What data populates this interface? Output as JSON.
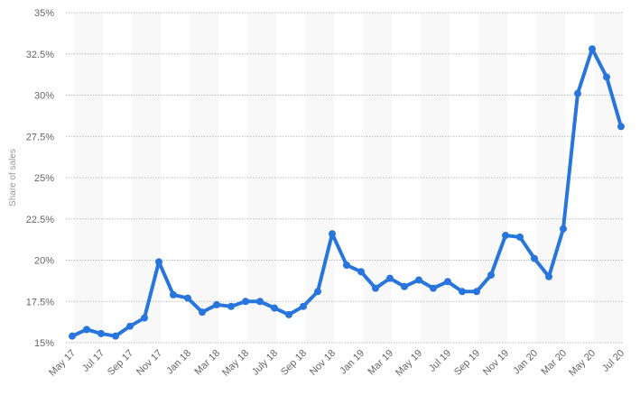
{
  "chart_data": {
    "type": "line",
    "title": "",
    "xlabel": "",
    "ylabel": "Share of sales",
    "ylim": [
      15,
      35
    ],
    "yticks": [
      15,
      17.5,
      20,
      22.5,
      25,
      27.5,
      30,
      32.5,
      35
    ],
    "ytick_labels": [
      "15%",
      "17.5%",
      "20%",
      "22.5%",
      "25%",
      "27.5%",
      "30%",
      "32.5%",
      "35%"
    ],
    "grid": true,
    "line_color": "#2876dd",
    "categories": [
      "May 17",
      "Jun 17",
      "Jul 17",
      "Aug 17",
      "Sep 17",
      "Oct 17",
      "Nov 17",
      "Dec 17",
      "Jan 18",
      "Feb 18",
      "Mar 18",
      "Apr 18",
      "May 18",
      "Jun 18",
      "July 18",
      "Aug 18",
      "Sep 18",
      "Oct 18",
      "Nov 18",
      "Dec 18",
      "Jan 19",
      "Feb 19",
      "Mar 19",
      "Apr 19",
      "May 19",
      "Jun 19",
      "Jul 19",
      "Aug 19",
      "Sep 19",
      "Oct 19",
      "Nov 19",
      "Dec 19",
      "Jan 20",
      "Feb 20",
      "Mar 20",
      "Apr 20",
      "May 20",
      "Jun 20",
      "Jul 20"
    ],
    "xtick_labels": [
      "May 17",
      "Jul 17",
      "Sep 17",
      "Nov 17",
      "Jan 18",
      "Mar 18",
      "May 18",
      "July 18",
      "Sep 18",
      "Nov 18",
      "Jan 19",
      "Mar 19",
      "May 19",
      "Jul 19",
      "Sep 19",
      "Nov 19",
      "Jan 20",
      "Mar 20",
      "May 20",
      "Jul 20"
    ],
    "values": [
      15.4,
      15.8,
      15.55,
      15.4,
      16.0,
      16.5,
      19.9,
      17.9,
      17.7,
      16.85,
      17.3,
      17.2,
      17.5,
      17.5,
      17.1,
      16.7,
      17.2,
      18.1,
      21.6,
      19.7,
      19.3,
      18.3,
      18.9,
      18.4,
      18.8,
      18.3,
      18.7,
      18.1,
      18.1,
      19.1,
      21.5,
      21.4,
      20.1,
      19.0,
      21.9,
      30.1,
      32.8,
      31.1,
      28.1
    ]
  }
}
